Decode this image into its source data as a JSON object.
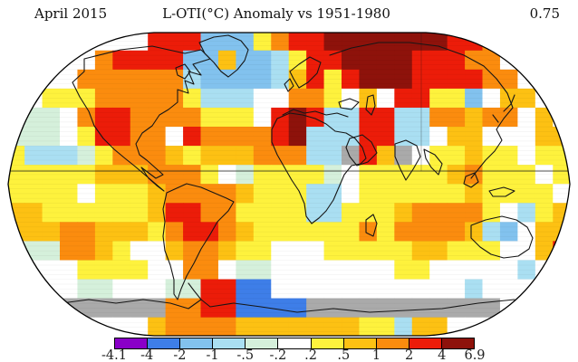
{
  "header": {
    "date": "April 2015",
    "title": "L-OTI(°C) Anomaly vs 1951-1980",
    "mean_value": "0.75"
  },
  "legend": {
    "tick_labels": [
      "-4.1",
      "-4",
      "-2",
      "-1",
      "-.5",
      "-.2",
      ".2",
      ".5",
      "1",
      "2",
      "4",
      "6.9"
    ],
    "boundaries_celsius": [
      -4.1,
      -4,
      -2,
      -1,
      -0.5,
      -0.2,
      0.2,
      0.5,
      1,
      2,
      4,
      6.9
    ],
    "segment_colors": [
      "#8a00c8",
      "#3e7ee8",
      "#82c2ee",
      "#aadff2",
      "#d5f0db",
      "#ffffff",
      "#fef23d",
      "#fdc113",
      "#fb8c0e",
      "#ec1c09",
      "#8e120b"
    ],
    "no_data_color": "#aaaaaa"
  },
  "map": {
    "palette": {
      "P": "#8a00c8",
      "B": "#3e7ee8",
      "L": "#82c2ee",
      "C": "#aadff2",
      "G": "#d5f0db",
      "W": "#ffffff",
      "Y": "#fef23d",
      "A": "#fdc113",
      "O": "#fb8c0e",
      "R": "#ec1c09",
      "D": "#8e120b",
      "N": "#aaaaaa"
    },
    "grid_cols": 32,
    "grid_rows_count": 16,
    "grid_rows": [
      "WWWWWWWWRRRLLLYORRDDDDDDDRROWWWW",
      "WWWWWORRRRLLALLCYRRDDDDRRROOWWWW",
      "WWWWOOOOOOCLLLLCARYRDDDRRRROOWWW",
      "WWYYYOOOOOYCCCWWOOYWAWRRYYLWAAWW",
      "WGGWORROOOOYYYWRDRCCRRCCOOAOOWAW",
      "GGGWYRROOWROOOORDCCCRRCCWAAWWWAA",
      "YCCCGYOOOAYAAAOOOCCNRANWYYAYYWYY",
      "YYYYYAAAOOOYWGYYYYGWYYYYYAOYYYWY",
      "YYYYWYYYAOOOOAYYYCCWYYYYYYAYYYYW",
      "AAYYYYYYARROOYYYYCCYYYAOOOOYWCYA",
      "AAAOOAAAYORROAYYYYYYOYOOOOACLWAA",
      "WGGOOAYWWAOOAYYWWWYYYYYAAYYYWWAR",
      "WWWWYYYYWWOOWGGWWWWWWWYYWWWWWCWW",
      "WWWWGGWWWGGRRBBWWWWWWWWWWWCWWWWW",
      "WWWNNNNNNOORRBBBBNNNNNNNNNNNWWWW",
      "WWWWWWWWAOOOOAAAAAAAYYCAAWWWWWWW"
    ]
  }
}
